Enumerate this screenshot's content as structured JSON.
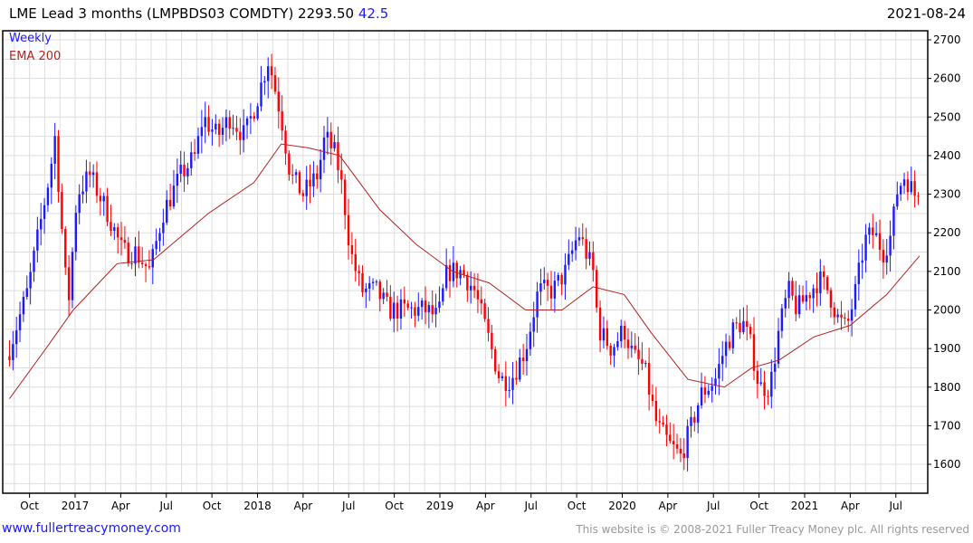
{
  "header": {
    "title": "LME Lead 3 months (LMPBDS03 COMDTY) 2293.50",
    "change": "42.5",
    "date": "2021-08-24"
  },
  "footer": {
    "link": "www.fullertreacymoney.com",
    "copyright": "This website is © 2008-2021 Fuller Treacy Money plc. All rights reserved"
  },
  "colors": {
    "up": "#1a1aff",
    "down": "#ff0000",
    "ema": "#b22222",
    "grid": "#dddddd"
  },
  "chart_data": {
    "type": "candlestick",
    "title": "LME Lead 3 months (LMPBDS03 COMDTY)",
    "last": 2293.5,
    "legend": [
      {
        "label": "Weekly",
        "color": "#1a1aff"
      },
      {
        "label": "EMA 200",
        "color": "#b22222"
      }
    ],
    "ylim": [
      1530,
      2730
    ],
    "yticks": [
      1600,
      1700,
      1800,
      1900,
      2000,
      2100,
      2200,
      2300,
      2400,
      2500,
      2600,
      2700
    ],
    "xlim": [
      2016.6,
      2021.68
    ],
    "xticks": [
      {
        "t": 2016.75,
        "label": "Oct"
      },
      {
        "t": 2017.0,
        "label": "2017"
      },
      {
        "t": 2017.25,
        "label": "Apr"
      },
      {
        "t": 2017.5,
        "label": "Jul"
      },
      {
        "t": 2017.75,
        "label": "Oct"
      },
      {
        "t": 2018.0,
        "label": "2018"
      },
      {
        "t": 2018.25,
        "label": "Apr"
      },
      {
        "t": 2018.5,
        "label": "Jul"
      },
      {
        "t": 2018.75,
        "label": "Oct"
      },
      {
        "t": 2019.0,
        "label": "2019"
      },
      {
        "t": 2019.25,
        "label": "Apr"
      },
      {
        "t": 2019.5,
        "label": "Jul"
      },
      {
        "t": 2019.75,
        "label": "Oct"
      },
      {
        "t": 2020.0,
        "label": "2020"
      },
      {
        "t": 2020.25,
        "label": "Apr"
      },
      {
        "t": 2020.5,
        "label": "Jul"
      },
      {
        "t": 2020.75,
        "label": "Oct"
      },
      {
        "t": 2021.0,
        "label": "2021"
      },
      {
        "t": 2021.25,
        "label": "Apr"
      },
      {
        "t": 2021.5,
        "label": "Jul"
      }
    ],
    "price_path": [
      [
        2016.64,
        1900
      ],
      [
        2016.74,
        2050
      ],
      [
        2016.86,
        2350
      ],
      [
        2016.89,
        2450
      ],
      [
        2016.96,
        2000
      ],
      [
        2017.01,
        2300
      ],
      [
        2017.08,
        2350
      ],
      [
        2017.18,
        2250
      ],
      [
        2017.26,
        2150
      ],
      [
        2017.33,
        2150
      ],
      [
        2017.41,
        2100
      ],
      [
        2017.48,
        2250
      ],
      [
        2017.58,
        2350
      ],
      [
        2017.66,
        2400
      ],
      [
        2017.7,
        2500
      ],
      [
        2017.78,
        2450
      ],
      [
        2017.85,
        2500
      ],
      [
        2017.93,
        2450
      ],
      [
        2018.0,
        2550
      ],
      [
        2018.06,
        2650
      ],
      [
        2018.13,
        2500
      ],
      [
        2018.18,
        2350
      ],
      [
        2018.25,
        2300
      ],
      [
        2018.33,
        2350
      ],
      [
        2018.37,
        2450
      ],
      [
        2018.43,
        2400
      ],
      [
        2018.47,
        2300
      ],
      [
        2018.51,
        2150
      ],
      [
        2018.57,
        2050
      ],
      [
        2018.65,
        2050
      ],
      [
        2018.72,
        2000
      ],
      [
        2018.82,
        2000
      ],
      [
        2018.92,
        2000
      ],
      [
        2018.99,
        1980
      ],
      [
        2019.04,
        2100
      ],
      [
        2019.12,
        2100
      ],
      [
        2019.19,
        2050
      ],
      [
        2019.27,
        1920
      ],
      [
        2019.33,
        1820
      ],
      [
        2019.39,
        1820
      ],
      [
        2019.47,
        1900
      ],
      [
        2019.54,
        2050
      ],
      [
        2019.62,
        2050
      ],
      [
        2019.69,
        2100
      ],
      [
        2019.76,
        2200
      ],
      [
        2019.84,
        2100
      ],
      [
        2019.87,
        1950
      ],
      [
        2019.94,
        1900
      ],
      [
        2020.01,
        1950
      ],
      [
        2020.06,
        1880
      ],
      [
        2020.12,
        1850
      ],
      [
        2020.19,
        1700
      ],
      [
        2020.26,
        1650
      ],
      [
        2020.32,
        1620
      ],
      [
        2020.38,
        1700
      ],
      [
        2020.43,
        1780
      ],
      [
        2020.51,
        1820
      ],
      [
        2020.56,
        1900
      ],
      [
        2020.61,
        1950
      ],
      [
        2020.66,
        1970
      ],
      [
        2020.71,
        1900
      ],
      [
        2020.75,
        1800
      ],
      [
        2020.81,
        1800
      ],
      [
        2020.86,
        1950
      ],
      [
        2020.91,
        2050
      ],
      [
        2020.96,
        2000
      ],
      [
        2021.0,
        2030
      ],
      [
        2021.08,
        2080
      ],
      [
        2021.13,
        2050
      ],
      [
        2021.18,
        1980
      ],
      [
        2021.23,
        1950
      ],
      [
        2021.28,
        2050
      ],
      [
        2021.33,
        2180
      ],
      [
        2021.38,
        2200
      ],
      [
        2021.43,
        2150
      ],
      [
        2021.48,
        2200
      ],
      [
        2021.5,
        2300
      ],
      [
        2021.55,
        2350
      ],
      [
        2021.6,
        2300
      ],
      [
        2021.63,
        2293.5
      ]
    ],
    "ema200": [
      [
        2016.64,
        1770
      ],
      [
        2016.84,
        1900
      ],
      [
        2016.99,
        2000
      ],
      [
        2017.23,
        2120
      ],
      [
        2017.43,
        2130
      ],
      [
        2017.73,
        2250
      ],
      [
        2017.98,
        2330
      ],
      [
        2018.13,
        2430
      ],
      [
        2018.28,
        2420
      ],
      [
        2018.45,
        2400
      ],
      [
        2018.67,
        2260
      ],
      [
        2018.87,
        2170
      ],
      [
        2019.07,
        2100
      ],
      [
        2019.27,
        2070
      ],
      [
        2019.47,
        2000
      ],
      [
        2019.67,
        2000
      ],
      [
        2019.84,
        2060
      ],
      [
        2020.01,
        2040
      ],
      [
        2020.16,
        1940
      ],
      [
        2020.36,
        1820
      ],
      [
        2020.56,
        1800
      ],
      [
        2020.71,
        1850
      ],
      [
        2020.86,
        1870
      ],
      [
        2021.05,
        1930
      ],
      [
        2021.25,
        1960
      ],
      [
        2021.45,
        2040
      ],
      [
        2021.63,
        2140
      ]
    ]
  }
}
